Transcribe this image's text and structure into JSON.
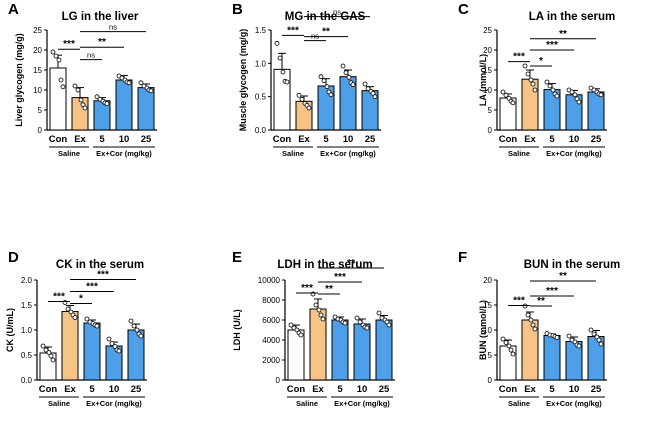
{
  "figure": {
    "colors": {
      "saline": "#ffffff",
      "ex": "#f7c387",
      "cor": "#4d9fe8",
      "ink": "#000000"
    },
    "group_labels": {
      "saline": "Saline",
      "excor": "Ex+Cor (mg/kg)"
    }
  },
  "chart_data": [
    {
      "type": "bar",
      "panel": "A",
      "title": "LG  in the liver",
      "ylabel": "Liver glycogen (mg/g)",
      "categories": [
        "Con",
        "Ex",
        "5",
        "10",
        "25"
      ],
      "values": [
        15.5,
        8.1,
        7.3,
        12.5,
        10.6
      ],
      "errors": [
        3.2,
        2.5,
        0.8,
        1.1,
        0.9
      ],
      "points": [
        [
          19.5,
          18.5,
          17.5,
          12.5,
          10.8
        ],
        [
          11.0,
          10.0,
          7.5,
          6.3,
          5.5
        ],
        [
          8.3,
          7.7,
          7.2,
          6.8,
          6.6
        ],
        [
          13.5,
          13.0,
          12.5,
          12.0,
          11.8
        ],
        [
          11.8,
          11.0,
          10.5,
          10.0,
          9.8
        ]
      ],
      "yticks": [
        "0",
        "5",
        "10",
        "15",
        "20",
        "25"
      ],
      "ylim": [
        0,
        25
      ],
      "significance": [
        {
          "from": 0,
          "to": 1,
          "label": "***",
          "y": 20.2
        },
        {
          "from": 1,
          "to": 2,
          "label": "ns",
          "y": 17.6
        },
        {
          "from": 1,
          "to": 3,
          "label": "**",
          "y": 20.7
        },
        {
          "from": 1,
          "to": 4,
          "label": "ns",
          "y": 24.6
        }
      ]
    },
    {
      "type": "bar",
      "panel": "B",
      "title": "MG  in the GAS",
      "ylabel": "Muscle glycogen (mg/g)",
      "categories": [
        "Con",
        "Ex",
        "5",
        "10",
        "25"
      ],
      "values": [
        0.91,
        0.43,
        0.66,
        0.8,
        0.59
      ],
      "errors": [
        0.24,
        0.08,
        0.11,
        0.1,
        0.06
      ],
      "points": [
        [
          1.3,
          1.08,
          0.87,
          0.73,
          0.72
        ],
        [
          0.52,
          0.46,
          0.4,
          0.37,
          0.33
        ],
        [
          0.8,
          0.74,
          0.65,
          0.57,
          0.53
        ],
        [
          0.96,
          0.86,
          0.79,
          0.71,
          0.68
        ],
        [
          0.69,
          0.62,
          0.58,
          0.55,
          0.5
        ]
      ],
      "yticks": [
        "0.0",
        "0.5",
        "1.0",
        "1.5"
      ],
      "ylim": [
        0,
        1.5
      ],
      "significance": [
        {
          "from": 0,
          "to": 1,
          "label": "***",
          "y": 1.42
        },
        {
          "from": 1,
          "to": 2,
          "label": "ns",
          "y": 1.34
        },
        {
          "from": 1,
          "to": 3,
          "label": "**",
          "y": 1.4
        },
        {
          "from": 1,
          "to": 4,
          "label": "ns",
          "y": 1.7
        }
      ]
    },
    {
      "type": "bar",
      "panel": "C",
      "title": "LA  in the serum",
      "ylabel": "LA (mmol/L)",
      "categories": [
        "Con",
        "Ex",
        "5",
        "10",
        "25"
      ],
      "values": [
        8.0,
        12.7,
        10.1,
        8.8,
        9.5
      ],
      "errors": [
        1.0,
        2.3,
        1.5,
        1.1,
        0.8
      ],
      "points": [
        [
          9.5,
          8.7,
          7.9,
          7.2,
          6.8
        ],
        [
          16.0,
          14.0,
          12.5,
          11.5,
          10.0
        ],
        [
          12.0,
          11.0,
          10.0,
          9.0,
          8.5
        ],
        [
          10.0,
          9.5,
          8.8,
          7.8,
          7.0
        ],
        [
          10.5,
          10.0,
          9.5,
          9.0,
          8.8
        ]
      ],
      "yticks": [
        "0",
        "5",
        "10",
        "15",
        "20",
        "25"
      ],
      "ylim": [
        0,
        25
      ],
      "significance": [
        {
          "from": 0,
          "to": 1,
          "label": "***",
          "y": 17.1
        },
        {
          "from": 1,
          "to": 2,
          "label": "*",
          "y": 16.0
        },
        {
          "from": 1,
          "to": 3,
          "label": "***",
          "y": 20.0
        },
        {
          "from": 1,
          "to": 4,
          "label": "**",
          "y": 22.8
        }
      ]
    },
    {
      "type": "bar",
      "panel": "D",
      "title": "CK in the serum",
      "ylabel": "CK (U/mL)",
      "categories": [
        "Con",
        "Ex",
        "5",
        "10",
        "25"
      ],
      "values": [
        0.54,
        1.37,
        1.14,
        0.68,
        1.0
      ],
      "errors": [
        0.12,
        0.12,
        0.06,
        0.08,
        0.12
      ],
      "points": [
        [
          0.68,
          0.6,
          0.55,
          0.48,
          0.4
        ],
        [
          1.55,
          1.42,
          1.36,
          1.3,
          1.25
        ],
        [
          1.22,
          1.16,
          1.13,
          1.1,
          1.08
        ],
        [
          0.82,
          0.73,
          0.67,
          0.6,
          0.58
        ],
        [
          1.18,
          1.08,
          1.0,
          0.92,
          0.88
        ]
      ],
      "yticks": [
        "0.0",
        "0.5",
        "1.0",
        "1.5",
        "2.0"
      ],
      "ylim": [
        0,
        2.0
      ],
      "significance": [
        {
          "from": 0,
          "to": 1,
          "label": "***",
          "y": 1.57
        },
        {
          "from": 1,
          "to": 2,
          "label": "*",
          "y": 1.53
        },
        {
          "from": 1,
          "to": 3,
          "label": "***",
          "y": 1.77
        },
        {
          "from": 1,
          "to": 4,
          "label": "***",
          "y": 2.01
        }
      ]
    },
    {
      "type": "bar",
      "panel": "E",
      "title": "LDH in the serum",
      "ylabel": "LDH (U/L)",
      "categories": [
        "Con",
        "Ex",
        "5",
        "10",
        "25"
      ],
      "values": [
        5000,
        7100,
        6000,
        5600,
        6000
      ],
      "errors": [
        500,
        1000,
        300,
        500,
        450
      ],
      "points": [
        [
          5500,
          5200,
          5000,
          4700,
          4500
        ],
        [
          8600,
          7500,
          7000,
          6500,
          6100
        ],
        [
          6300,
          6100,
          6000,
          5800,
          5700
        ],
        [
          6200,
          5800,
          5500,
          5300,
          5200
        ],
        [
          6700,
          6200,
          6000,
          5800,
          5500
        ]
      ],
      "yticks": [
        "0",
        "2000",
        "4000",
        "6000",
        "8000",
        "10000"
      ],
      "ylim": [
        0,
        10000
      ],
      "significance": [
        {
          "from": 0,
          "to": 1,
          "label": "***",
          "y": 8700
        },
        {
          "from": 1,
          "to": 2,
          "label": "**",
          "y": 8600
        },
        {
          "from": 1,
          "to": 3,
          "label": "***",
          "y": 9800
        },
        {
          "from": 1,
          "to": 4,
          "label": "**",
          "y": 11200
        }
      ]
    },
    {
      "type": "bar",
      "panel": "F",
      "title": "BUN in the serum",
      "ylabel": "BUN (mmol/L)",
      "categories": [
        "Con",
        "Ex",
        "5",
        "10",
        "25"
      ],
      "values": [
        6.8,
        12.0,
        8.9,
        7.7,
        8.7
      ],
      "errors": [
        1.2,
        1.6,
        0.3,
        0.9,
        1.2
      ],
      "points": [
        [
          8.2,
          7.5,
          6.8,
          6.0,
          5.2
        ],
        [
          14.8,
          13.0,
          12.0,
          11.0,
          10.2
        ],
        [
          9.3,
          9.0,
          8.9,
          8.7,
          8.5
        ],
        [
          8.8,
          8.0,
          7.6,
          7.0,
          6.8
        ],
        [
          10.0,
          9.2,
          8.6,
          8.0,
          7.2
        ]
      ],
      "yticks": [
        "0",
        "5",
        "10",
        "15",
        "20"
      ],
      "ylim": [
        0,
        20
      ],
      "significance": [
        {
          "from": 0,
          "to": 1,
          "label": "***",
          "y": 14.9
        },
        {
          "from": 1,
          "to": 2,
          "label": "**",
          "y": 14.8
        },
        {
          "from": 1,
          "to": 3,
          "label": "***",
          "y": 16.8
        },
        {
          "from": 1,
          "to": 4,
          "label": "**",
          "y": 19.8
        }
      ]
    }
  ]
}
